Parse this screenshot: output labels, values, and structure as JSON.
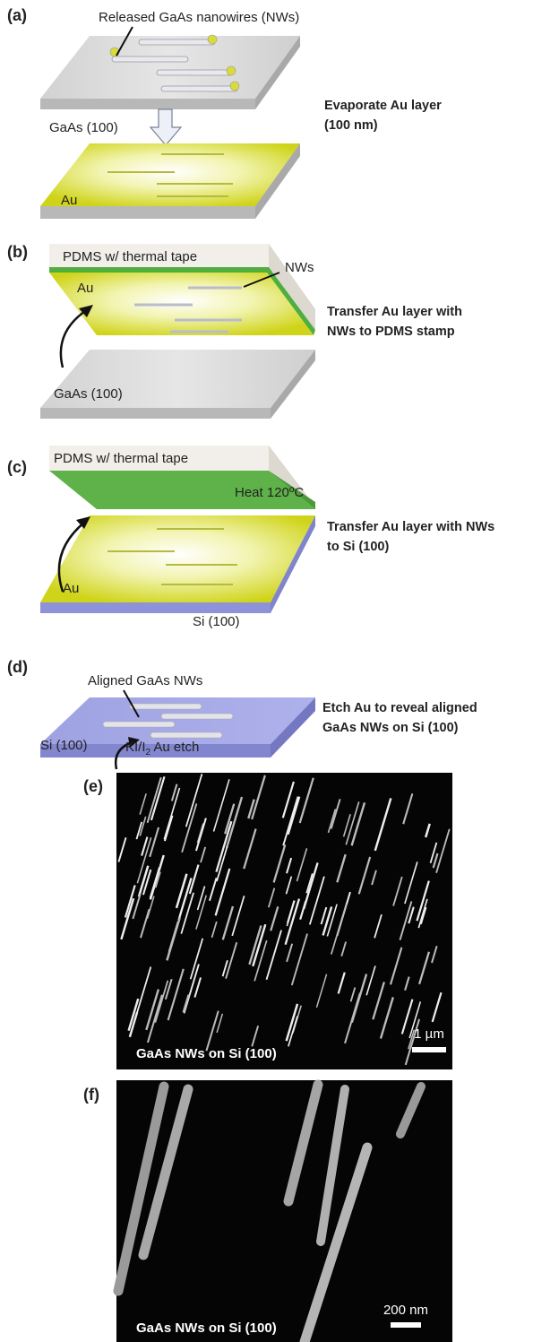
{
  "panels": [
    {
      "label": "(a)",
      "texts": [
        "Released GaAs nanowires (NWs)",
        "GaAs (100)",
        "Au"
      ],
      "caption": [
        "Evaporate Au layer",
        "(100 nm)"
      ]
    },
    {
      "label": "(b)",
      "texts": [
        "PDMS w/ thermal tape",
        "Au",
        "NWs",
        "GaAs (100)"
      ],
      "caption": [
        "Transfer Au layer with",
        "NWs to PDMS stamp"
      ]
    },
    {
      "label": "(c)",
      "texts": [
        "PDMS w/ thermal tape",
        "Heat 120ºC",
        "Au",
        "Si (100)"
      ],
      "caption": [
        "Transfer Au layer with NWs",
        "to Si (100)"
      ]
    },
    {
      "label": "(d)",
      "texts": [
        "Aligned GaAs NWs",
        "Si (100)"
      ],
      "etch": {
        "main": "KI/I",
        "sub": "2",
        "rest": " Au etch"
      },
      "caption": [
        "Etch Au to reveal aligned",
        "GaAs NWs on Si (100)"
      ]
    },
    {
      "label": "(e)",
      "caption": "GaAs NWs on Si (100)",
      "scale": "1 µm"
    },
    {
      "label": "(f)",
      "caption": "GaAs NWs on Si (100)",
      "scale": "200 nm"
    }
  ]
}
